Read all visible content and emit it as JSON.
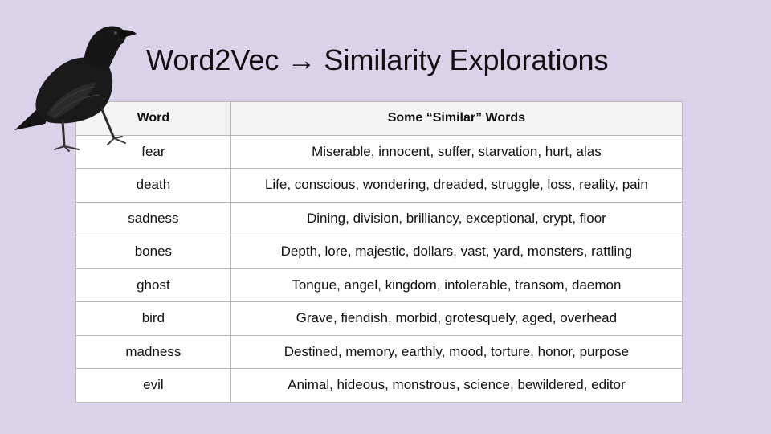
{
  "slide": {
    "title": "Word2Vec → Similarity Explorations",
    "background": "#d9d2e9"
  },
  "table": {
    "headers": [
      "Word",
      "Some “Similar” Words"
    ],
    "rows": [
      {
        "word": "fear",
        "similar": "Miserable, innocent, suffer, starvation, hurt, alas"
      },
      {
        "word": "death",
        "similar": "Life, conscious, wondering, dreaded, struggle, loss, reality, pain"
      },
      {
        "word": "sadness",
        "similar": "Dining, division, brilliancy, exceptional, crypt, floor"
      },
      {
        "word": "bones",
        "similar": "Depth, lore, majestic, dollars, vast, yard, monsters, rattling"
      },
      {
        "word": "ghost",
        "similar": "Tongue, angel, kingdom, intolerable, transom, daemon"
      },
      {
        "word": "bird",
        "similar": "Grave, fiendish, morbid, grotesquely, aged, overhead"
      },
      {
        "word": "madness",
        "similar": "Destined, memory, earthly, mood, torture, honor, purpose"
      },
      {
        "word": "evil",
        "similar": "Animal, hideous, monstrous, science, bewildered, editor"
      }
    ]
  },
  "image": {
    "icon": "raven-icon"
  }
}
